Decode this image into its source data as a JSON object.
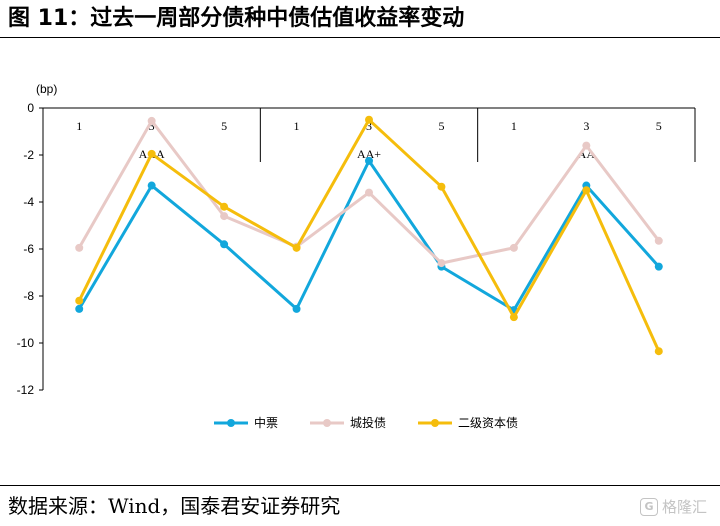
{
  "header": {
    "title": "图 11：过去一周部分债种中债估值收益率变动"
  },
  "footer": {
    "source": "数据来源：Wind，国泰君安证券研究"
  },
  "watermark": {
    "logo_glyph": "G",
    "text": "格隆汇"
  },
  "chart_data": {
    "type": "line",
    "title": "",
    "ylabel": "(bp)",
    "ylim": [
      -12,
      0
    ],
    "yticks": [
      0,
      -2,
      -4,
      -6,
      -8,
      -10,
      -12
    ],
    "x_tick_labels": [
      "1",
      "3",
      "5",
      "1",
      "3",
      "5",
      "1",
      "3",
      "5"
    ],
    "groups": [
      "AAA",
      "AA+",
      "AA"
    ],
    "legend_position": "bottom",
    "grid": false,
    "series": [
      {
        "name": "中票",
        "color": "#12a7dc",
        "values": [
          -8.55,
          -3.3,
          -5.8,
          -8.55,
          -2.25,
          -6.75,
          -8.6,
          -3.3,
          -6.75
        ]
      },
      {
        "name": "城投债",
        "color": "#e8c9c6",
        "values": [
          -5.95,
          -0.55,
          -4.6,
          -5.9,
          -3.6,
          -6.6,
          -5.95,
          -1.6,
          -5.65
        ]
      },
      {
        "name": "二级资本债",
        "color": "#f5bd0c",
        "values": [
          -8.2,
          -1.95,
          -4.2,
          -5.95,
          -0.5,
          -3.35,
          -8.9,
          -3.5,
          -10.35
        ]
      }
    ]
  }
}
